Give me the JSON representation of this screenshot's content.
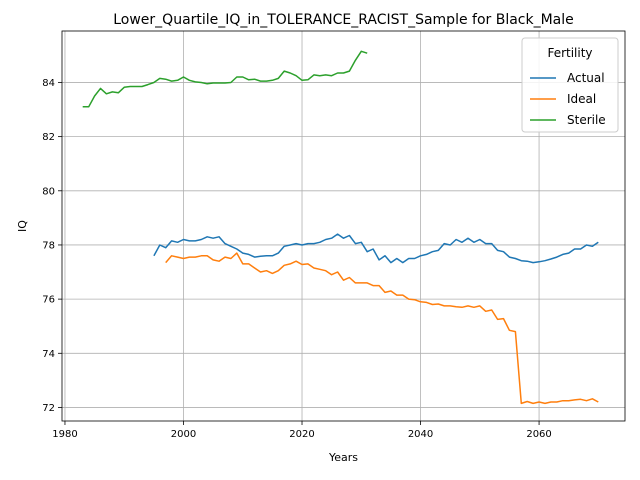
{
  "chart_data": {
    "type": "line",
    "title": "Lower_Quartile_IQ_in_TOLERANCE_RACIST_Sample for Black_Male",
    "xlabel": "Years",
    "ylabel": "IQ",
    "xlim": [
      1979.5,
      2074.5
    ],
    "ylim": [
      71.5,
      85.9
    ],
    "xticks": [
      1980,
      2000,
      2020,
      2040,
      2060
    ],
    "yticks": [
      72,
      74,
      76,
      78,
      80,
      82,
      84
    ],
    "grid": true,
    "legend": {
      "title": "Fertility",
      "position": "top-right"
    },
    "series": [
      {
        "name": "Actual",
        "color": "#1f77b4",
        "x": [
          1995,
          1996,
          1997,
          1998,
          1999,
          2000,
          2001,
          2002,
          2003,
          2004,
          2005,
          2006,
          2007,
          2008,
          2009,
          2010,
          2011,
          2012,
          2013,
          2014,
          2015,
          2016,
          2017,
          2018,
          2019,
          2020,
          2021,
          2022,
          2023,
          2024,
          2025,
          2026,
          2027,
          2028,
          2029,
          2030,
          2031,
          2032,
          2033,
          2034,
          2035,
          2036,
          2037,
          2038,
          2039,
          2040,
          2041,
          2042,
          2043,
          2044,
          2045,
          2046,
          2047,
          2048,
          2049,
          2050,
          2051,
          2052,
          2053,
          2054,
          2055,
          2056,
          2057,
          2058,
          2059,
          2060,
          2061,
          2062,
          2063,
          2064,
          2065,
          2066,
          2067,
          2068,
          2069,
          2070
        ],
        "y": [
          77.6,
          78.0,
          77.9,
          78.15,
          78.1,
          78.2,
          78.15,
          78.15,
          78.2,
          78.3,
          78.25,
          78.3,
          78.05,
          77.95,
          77.85,
          77.7,
          77.65,
          77.55,
          77.58,
          77.6,
          77.6,
          77.7,
          77.95,
          78.0,
          78.05,
          78.0,
          78.05,
          78.05,
          78.1,
          78.2,
          78.25,
          78.4,
          78.25,
          78.35,
          78.05,
          78.1,
          77.75,
          77.85,
          77.45,
          77.6,
          77.35,
          77.5,
          77.35,
          77.5,
          77.5,
          77.6,
          77.65,
          77.75,
          77.8,
          78.05,
          78.0,
          78.2,
          78.1,
          78.25,
          78.1,
          78.2,
          78.05,
          78.05,
          77.8,
          77.75,
          77.55,
          77.5,
          77.42,
          77.4,
          77.35,
          77.38,
          77.42,
          77.48,
          77.55,
          77.65,
          77.7,
          77.85,
          77.85,
          78.0,
          77.95,
          78.1
        ]
      },
      {
        "name": "Ideal",
        "color": "#ff7f0e",
        "x": [
          1997,
          1998,
          1999,
          2000,
          2001,
          2002,
          2003,
          2004,
          2005,
          2006,
          2007,
          2008,
          2009,
          2010,
          2011,
          2012,
          2013,
          2014,
          2015,
          2016,
          2017,
          2018,
          2019,
          2020,
          2021,
          2022,
          2023,
          2024,
          2025,
          2026,
          2027,
          2028,
          2029,
          2030,
          2031,
          2032,
          2033,
          2034,
          2035,
          2036,
          2037,
          2038,
          2039,
          2040,
          2041,
          2042,
          2043,
          2044,
          2045,
          2046,
          2047,
          2048,
          2049,
          2050,
          2051,
          2052,
          2053,
          2054,
          2055,
          2056,
          2057,
          2058,
          2059,
          2060,
          2061,
          2062,
          2063,
          2064,
          2065,
          2066,
          2067,
          2068,
          2069,
          2070
        ],
        "y": [
          77.35,
          77.6,
          77.55,
          77.5,
          77.55,
          77.55,
          77.6,
          77.6,
          77.45,
          77.4,
          77.55,
          77.5,
          77.7,
          77.3,
          77.3,
          77.15,
          77.0,
          77.05,
          76.95,
          77.05,
          77.25,
          77.3,
          77.4,
          77.28,
          77.3,
          77.15,
          77.1,
          77.05,
          76.9,
          77.0,
          76.7,
          76.8,
          76.6,
          76.6,
          76.6,
          76.5,
          76.5,
          76.25,
          76.3,
          76.15,
          76.15,
          76.0,
          75.98,
          75.9,
          75.88,
          75.8,
          75.82,
          75.75,
          75.75,
          75.72,
          75.7,
          75.75,
          75.7,
          75.75,
          75.55,
          75.6,
          75.25,
          75.28,
          74.85,
          74.8,
          72.15,
          72.22,
          72.15,
          72.2,
          72.15,
          72.2,
          72.2,
          72.25,
          72.25,
          72.28,
          72.3,
          72.25,
          72.32,
          72.2
        ]
      },
      {
        "name": "Sterile",
        "color": "#2ca02c",
        "x": [
          1983,
          1984,
          1985,
          1986,
          1987,
          1988,
          1989,
          1990,
          1991,
          1992,
          1993,
          1994,
          1995,
          1996,
          1997,
          1998,
          1999,
          2000,
          2001,
          2002,
          2003,
          2004,
          2005,
          2006,
          2007,
          2008,
          2009,
          2010,
          2011,
          2012,
          2013,
          2014,
          2015,
          2016,
          2017,
          2018,
          2019,
          2020,
          2021,
          2022,
          2023,
          2024,
          2025,
          2026,
          2027,
          2028,
          2029,
          2030,
          2031
        ],
        "y": [
          83.1,
          83.1,
          83.5,
          83.78,
          83.58,
          83.65,
          83.62,
          83.82,
          83.85,
          83.85,
          83.85,
          83.92,
          84.0,
          84.15,
          84.12,
          84.05,
          84.08,
          84.2,
          84.08,
          84.02,
          84.0,
          83.95,
          83.98,
          83.98,
          83.98,
          84.0,
          84.2,
          84.2,
          84.1,
          84.12,
          84.05,
          84.05,
          84.08,
          84.15,
          84.42,
          84.35,
          84.25,
          84.08,
          84.1,
          84.28,
          84.25,
          84.28,
          84.25,
          84.35,
          84.35,
          84.42,
          84.82,
          85.15,
          85.08
        ]
      }
    ]
  }
}
